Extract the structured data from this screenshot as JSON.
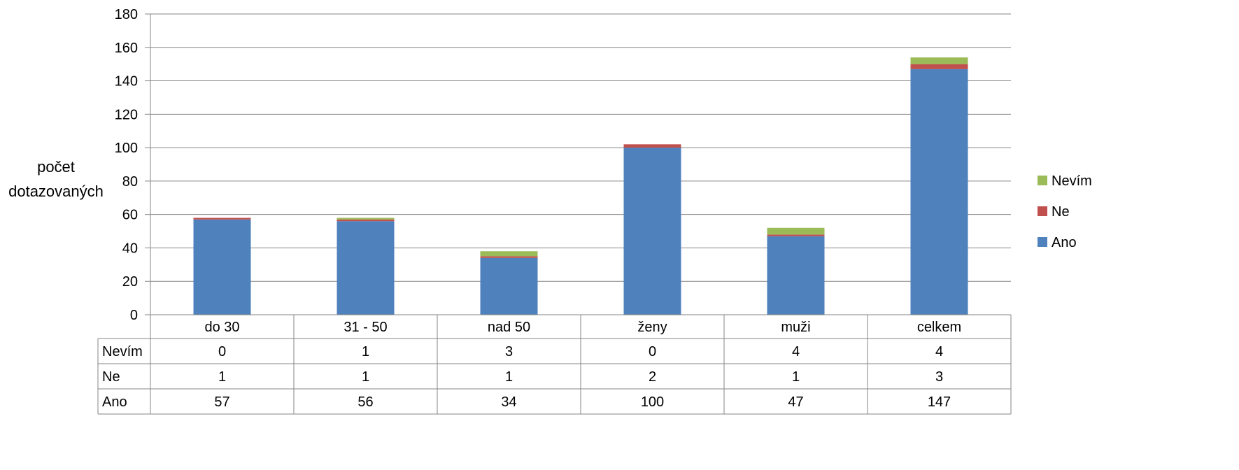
{
  "chart_data": {
    "type": "bar",
    "stacked": true,
    "title": "",
    "xlabel": "",
    "ylabel_lines": [
      "počet",
      "dotazovaných"
    ],
    "ylim": [
      0,
      180
    ],
    "yticks": [
      0,
      20,
      40,
      60,
      80,
      100,
      120,
      140,
      160,
      180
    ],
    "grid": true,
    "legend_position": "right",
    "data_table": true,
    "categories": [
      "do 30",
      "31 - 50",
      "nad 50",
      "ženy",
      "muži",
      "celkem"
    ],
    "series": [
      {
        "name": "Ano",
        "color": "#4F81BD",
        "values": [
          57,
          56,
          34,
          100,
          47,
          147
        ]
      },
      {
        "name": "Ne",
        "color": "#C0504D",
        "values": [
          1,
          1,
          1,
          2,
          1,
          3
        ]
      },
      {
        "name": "Nevím",
        "color": "#9BBB59",
        "values": [
          0,
          1,
          3,
          0,
          4,
          4
        ]
      }
    ]
  }
}
